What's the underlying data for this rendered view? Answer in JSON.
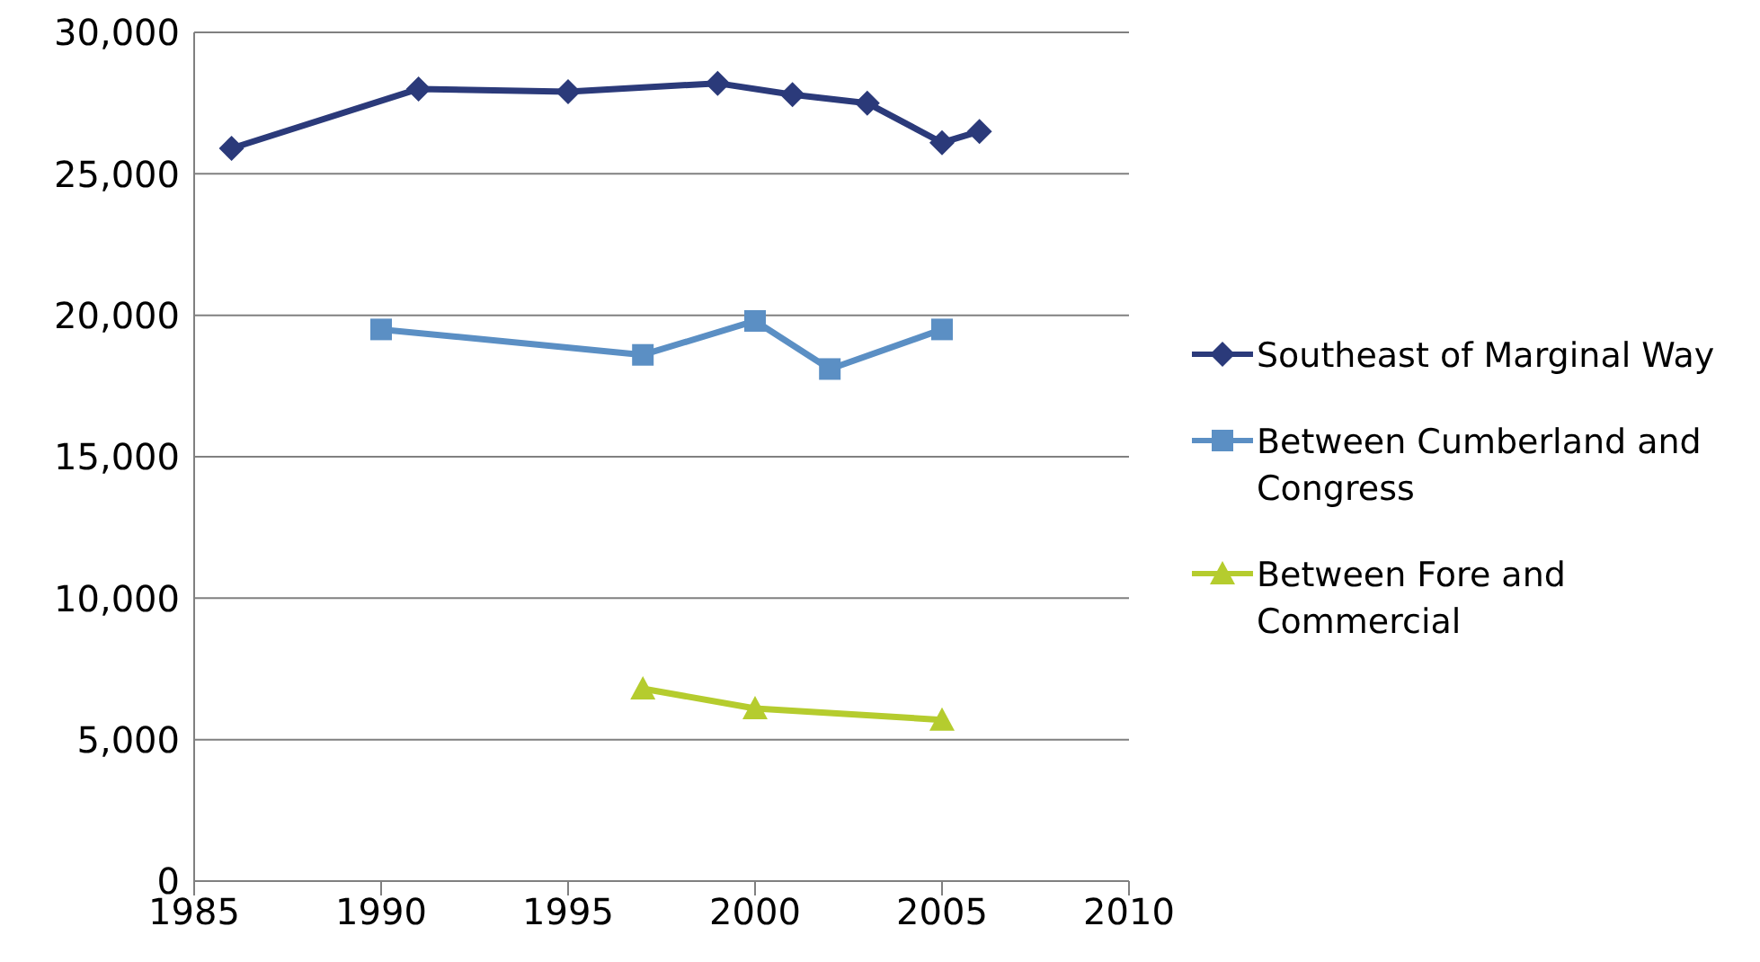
{
  "chart_data": {
    "type": "line",
    "xlim": [
      1985,
      2010
    ],
    "xticks": [
      1985,
      1990,
      1995,
      2000,
      2005,
      2010
    ],
    "ylim": [
      0,
      30000
    ],
    "yticks": [
      {
        "value": 0,
        "label": "0"
      },
      {
        "value": 5000,
        "label": "5,000"
      },
      {
        "value": 10000,
        "label": "10,000"
      },
      {
        "value": 15000,
        "label": "15,000"
      },
      {
        "value": 20000,
        "label": "20,000"
      },
      {
        "value": 25000,
        "label": "25,000"
      },
      {
        "value": 30000,
        "label": "30,000"
      }
    ],
    "grid": "y",
    "legend": "right",
    "series": [
      {
        "name": "Southeast of Marginal Way",
        "color": "#2b3a7a",
        "marker": "diamond",
        "x": [
          1986,
          1991,
          1995,
          1999,
          2001,
          2003,
          2005,
          2006
        ],
        "values": [
          25900,
          28000,
          27900,
          28200,
          27800,
          27500,
          26100,
          26500
        ]
      },
      {
        "name": "Between Cumberland and Congress",
        "color": "#5b8fc4",
        "marker": "square",
        "x": [
          1990,
          1997,
          2000,
          2002,
          2005
        ],
        "values": [
          19500,
          18600,
          19800,
          18100,
          19500
        ]
      },
      {
        "name": "Between Fore and Commercial",
        "color": "#b5cc2e",
        "marker": "triangle",
        "x": [
          1997,
          2000,
          2005
        ],
        "values": [
          6800,
          6100,
          5700
        ]
      }
    ]
  }
}
